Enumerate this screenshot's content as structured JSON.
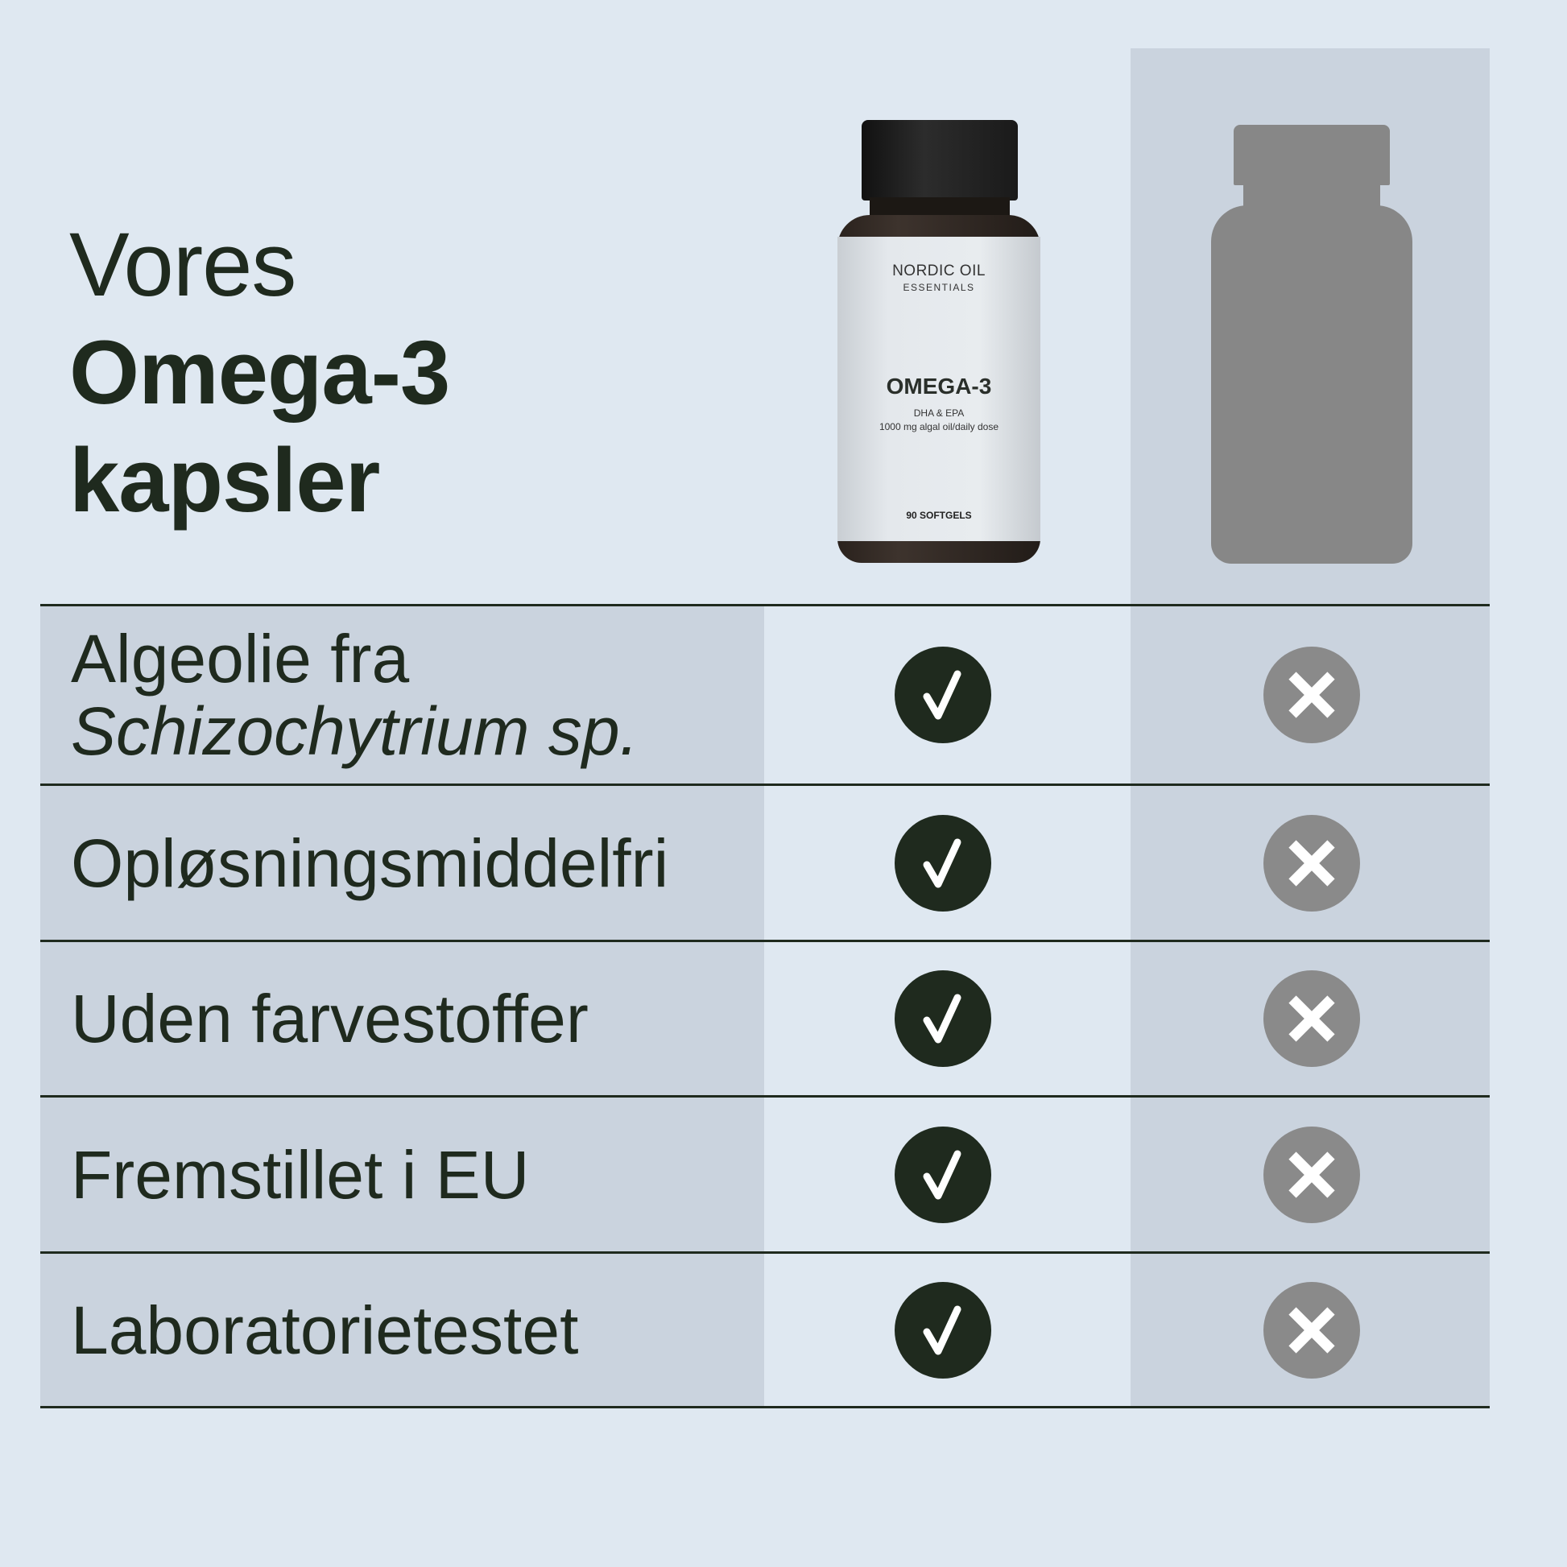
{
  "heading": {
    "line1": "Vores",
    "line2": "Omega-3",
    "line3": "kapsler"
  },
  "product": {
    "brand": "NORDIC OIL",
    "sub_brand": "ESSENTIALS",
    "name": "OMEGA-3",
    "subtitle": "DHA & EPA",
    "dose": "1000 mg algal oil/daily dose",
    "count": "90 SOFTGELS"
  },
  "rows": [
    {
      "label": "Algeolie fra",
      "label_italic": "Schizochytrium sp.",
      "ours": "check-icon",
      "others": "cross-icon"
    },
    {
      "label": "Opløsningsmiddelfri",
      "ours": "check-icon",
      "others": "cross-icon"
    },
    {
      "label": "Uden farvestoffer",
      "ours": "check-icon",
      "others": "cross-icon"
    },
    {
      "label": "Fremstillet i EU",
      "ours": "check-icon",
      "others": "cross-icon"
    },
    {
      "label": "Laboratorietestet",
      "ours": "check-icon",
      "others": "cross-icon"
    }
  ],
  "colors": {
    "background": "#dfe8f1",
    "shaded": "#cad3de",
    "dark": "#1f2a1e",
    "gray": "#8a8a8a"
  }
}
